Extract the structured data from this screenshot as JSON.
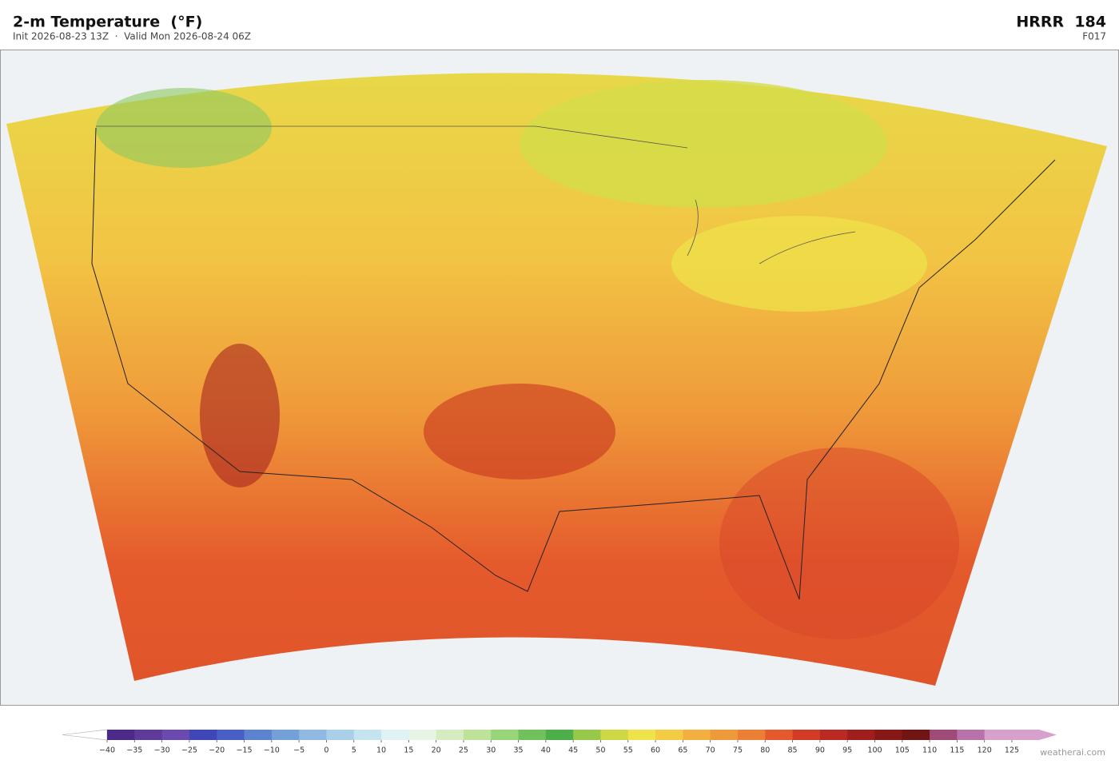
{
  "header": {
    "title": "2-m Temperature  (°F)",
    "subtitle": "Init 2026-08-23 13Z  ·  Valid Mon 2026-08-24 06Z",
    "model": "HRRR  184",
    "forecast_hour": "F017"
  },
  "colorbar": {
    "ticks": [
      {
        "value": -40,
        "label": "−40"
      },
      {
        "value": -35,
        "label": "−35"
      },
      {
        "value": -30,
        "label": "−30"
      },
      {
        "value": -25,
        "label": "−25"
      },
      {
        "value": -20,
        "label": "−20"
      },
      {
        "value": -15,
        "label": "−15"
      },
      {
        "value": -10,
        "label": "−10"
      },
      {
        "value": -5,
        "label": "−5"
      },
      0,
      5,
      10,
      15,
      20,
      25,
      30,
      35,
      40,
      45,
      50,
      55,
      60,
      65,
      70,
      75,
      80,
      85,
      90,
      95,
      100,
      105,
      110,
      115,
      120,
      125
    ],
    "colors": [
      "#4b2a8a",
      "#5e3a9a",
      "#6a4aae",
      "#3f46b8",
      "#4a5fc6",
      "#5b83d0",
      "#74a0d8",
      "#8fb9e0",
      "#a9d0e8",
      "#c4e4f0",
      "#dff2f4",
      "#e6f5e4",
      "#d4ecc0",
      "#bde39a",
      "#98d478",
      "#70c05c",
      "#4caf4a",
      "#96c84a",
      "#cdd844",
      "#eee44a",
      "#f4cc44",
      "#f3b040",
      "#ef9a3a",
      "#eb7f34",
      "#e55a2c",
      "#d23c26",
      "#bb2a22",
      "#a01e1e",
      "#861818",
      "#701414",
      "#a04a78",
      "#b872aa",
      "#d8a0cc"
    ],
    "under_color": "#ffffff",
    "over_color": "#d8a0cc"
  },
  "credit": "weatherai.com"
}
